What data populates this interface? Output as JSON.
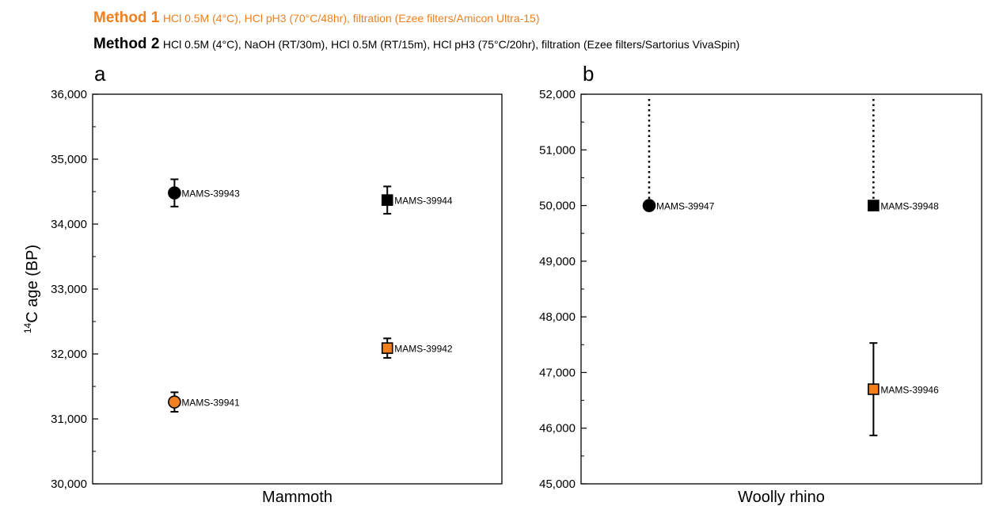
{
  "legend": {
    "method1": {
      "name": "Method 1",
      "description": "HCl 0.5M (4°C), HCl pH3 (70°C/48hr), filtration (Ezee filters/Amicon Ultra-15)",
      "color": "#F07F1E"
    },
    "method2": {
      "name": "Method 2",
      "description": "HCl 0.5M (4°C), NaOH (RT/30m), HCl 0.5M (RT/15m), HCl pH3 (75°C/20hr), filtration (Ezee filters/Sartorius VivaSpin)",
      "color": "#000000"
    }
  },
  "chart_data": [
    {
      "type": "scatter",
      "panel_label": "a",
      "xlabel": "Mammoth",
      "ylabel_main": "C age (BP)",
      "ylabel_superscript": "14",
      "ylim": [
        30000,
        36000
      ],
      "yticks": [
        "30,000",
        "31,000",
        "32,000",
        "33,000",
        "34,000",
        "35,000",
        "36,000"
      ],
      "ytick_values": [
        30000,
        31000,
        32000,
        33000,
        34000,
        35000,
        36000
      ],
      "xlim": [
        0,
        1
      ],
      "points": [
        {
          "label": "MAMS-39943",
          "x": 0.2,
          "y": 34480,
          "err": 210,
          "marker": "circle",
          "fill": "#000000"
        },
        {
          "label": "MAMS-39941",
          "x": 0.2,
          "y": 31260,
          "err": 150,
          "marker": "circle",
          "fill": "#F07F1E"
        },
        {
          "label": "MAMS-39944",
          "x": 0.72,
          "y": 34370,
          "err": 210,
          "marker": "square",
          "fill": "#000000"
        },
        {
          "label": "MAMS-39942",
          "x": 0.72,
          "y": 32090,
          "err": 150,
          "marker": "square",
          "fill": "#F07F1E"
        }
      ]
    },
    {
      "type": "scatter",
      "panel_label": "b",
      "xlabel": "Woolly rhino",
      "ylim": [
        45000,
        52000
      ],
      "yticks": [
        "45,000",
        "46,000",
        "47,000",
        "48,000",
        "49,000",
        "50,000",
        "51,000",
        "52,000"
      ],
      "ytick_values": [
        45000,
        46000,
        47000,
        48000,
        49000,
        50000,
        51000,
        52000
      ],
      "xlim": [
        0,
        1
      ],
      "points": [
        {
          "label": "MAMS-39947",
          "x": 0.17,
          "y": 50000,
          "marker": "circle",
          "fill": "#000000",
          "lower_limit": true
        },
        {
          "label": "MAMS-39948",
          "x": 0.73,
          "y": 50000,
          "marker": "square",
          "fill": "#000000",
          "lower_limit": true
        },
        {
          "label": "MAMS-39946",
          "x": 0.73,
          "y": 46700,
          "err": 830,
          "marker": "square",
          "fill": "#F07F1E"
        }
      ]
    }
  ]
}
